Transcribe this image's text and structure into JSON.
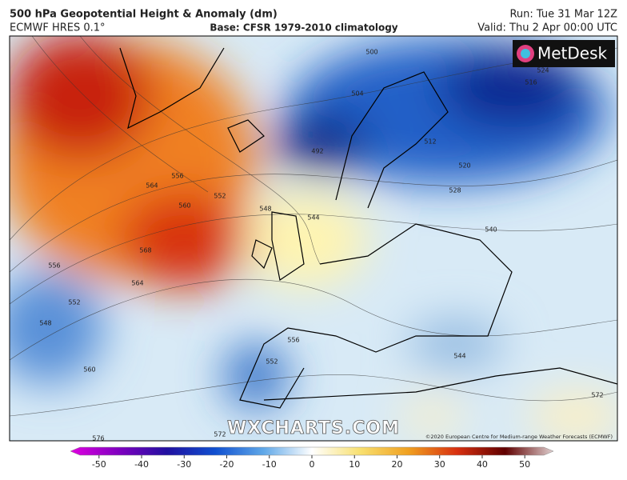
{
  "header": {
    "title": "500 hPa Geopotential Height & Anomaly (dm)",
    "model": "ECMWF HRES 0.1°",
    "base": "Base: CFSR 1979-2010 climatology",
    "run": "Run: Tue 31 Mar 12Z",
    "valid": "Valid: Thu 2 Apr 00:00 UTC"
  },
  "logo": "MetDesk",
  "watermark": "WXCHARTS.COM",
  "copyright": "©2020 European Centre for Medium-range Weather Forecasts (ECMWF)",
  "contour_labels": [
    500,
    504,
    512,
    516,
    520,
    528,
    540,
    544,
    548,
    552,
    556,
    564,
    560,
    568,
    564,
    556,
    552,
    548,
    560,
    556,
    552,
    572,
    576,
    572,
    544,
    524,
    492
  ],
  "colorbar": {
    "lim": [
      -55.6,
      55.6
    ],
    "ticks": [
      -50,
      -40,
      -30,
      -20,
      -10,
      0,
      10,
      20,
      30,
      40,
      50
    ]
  }
}
